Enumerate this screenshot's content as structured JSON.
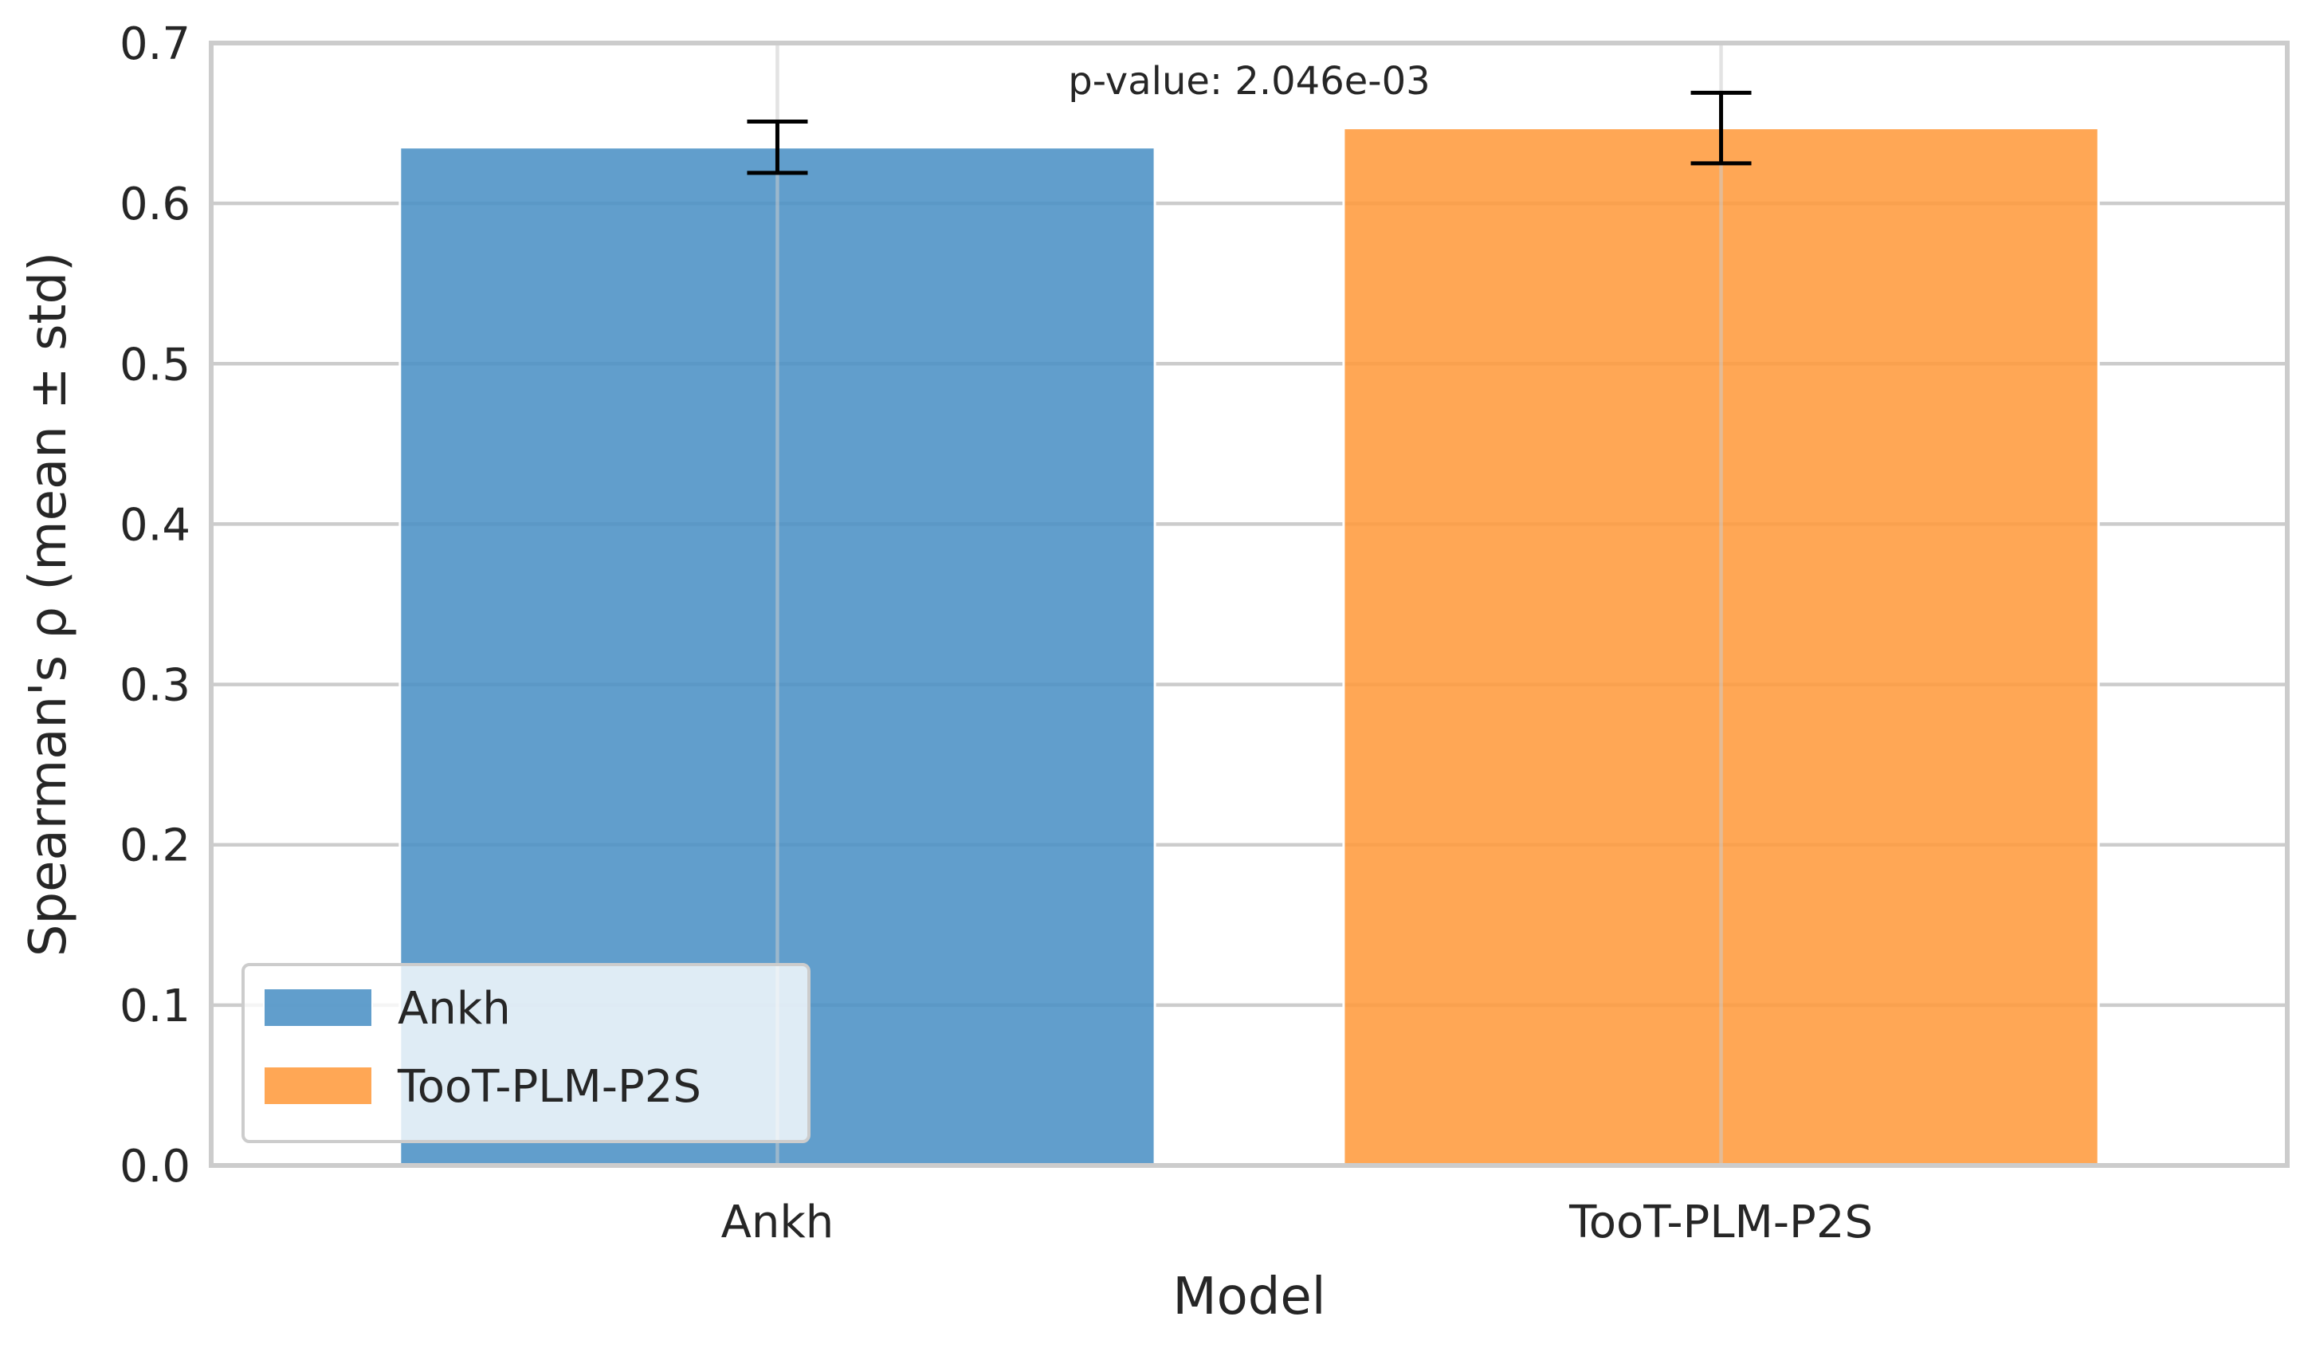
{
  "chart_data": {
    "type": "bar",
    "title": "",
    "xlabel": "Model",
    "ylabel": "Spearman's ρ (mean ± std)",
    "categories": [
      "Ankh",
      "TooT-PLM-P2S"
    ],
    "values": [
      0.635,
      0.647
    ],
    "errors": [
      0.016,
      0.022
    ],
    "colors": [
      "#4a90c4",
      "#ff9a3c"
    ],
    "ylim": [
      0.0,
      0.7
    ],
    "yticks": [
      "0.0",
      "0.1",
      "0.2",
      "0.3",
      "0.4",
      "0.5",
      "0.6",
      "0.7"
    ],
    "grid": true,
    "legend": {
      "placement": "lower-left",
      "entries": [
        "Ankh",
        "TooT-PLM-P2S"
      ]
    },
    "annotation": "p-value: 2.046e-03"
  }
}
